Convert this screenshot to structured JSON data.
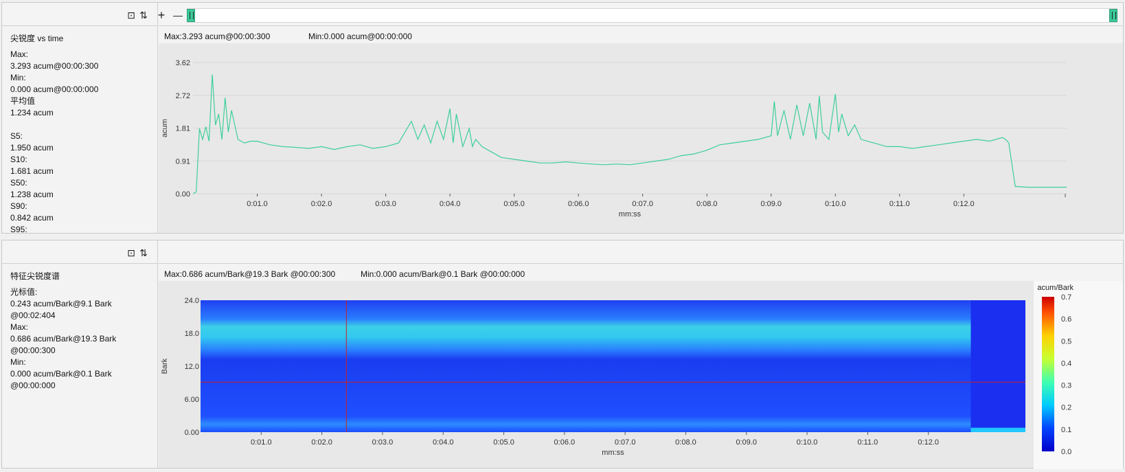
{
  "toolbar": {
    "crop_icon": "crop-icon",
    "sort_icon": "sort-icon",
    "zoom_in_label": "+",
    "zoom_out_label": "—"
  },
  "top": {
    "side_title": "尖锐度 vs time",
    "side_lines": [
      "Max:",
      "3.293 acum@00:00:300",
      "Min:",
      "0.000 acum@00:00:000",
      "平均值",
      "1.234 acum",
      "",
      "S5:",
      "1.950 acum",
      "S10:",
      "1.681 acum",
      "S50:",
      "1.238 acum",
      "S90:",
      "0.842 acum",
      "S95:"
    ],
    "max_text": "Max:3.293 acum@00:00:300",
    "min_text": "Min:0.000 acum@00:00:000"
  },
  "bottom": {
    "side_title": "特征尖锐度谱",
    "side_lines": [
      "光标值:",
      "0.243 acum/Bark@9.1 Bark",
      "@00:02:404",
      "Max:",
      "0.686 acum/Bark@19.3 Bark",
      "@00:00:300",
      "Min:",
      "0.000 acum/Bark@0.1 Bark",
      "@00:00:000"
    ],
    "max_text": "Max:0.686 acum/Bark@19.3 Bark @00:00:300",
    "min_text": "Min:0.000 acum/Bark@0.1 Bark @00:00:000"
  },
  "colors": {
    "line": "#3ccf99",
    "cursor": "#cc2222",
    "accent": "#3cc99a"
  },
  "chart_data": [
    {
      "type": "line",
      "xlabel": "mm:ss",
      "ylabel": "acum",
      "ylim": [
        0,
        3.62
      ],
      "xlim": [
        0,
        13.6
      ],
      "yticks": [
        "0.00",
        "0.91",
        "1.81",
        "2.72",
        "3.62"
      ],
      "xticks": [
        "0:01.0",
        "0:02.0",
        "0:03.0",
        "0:04.0",
        "0:05.0",
        "0:06.0",
        "0:07.0",
        "0:08.0",
        "0:09.0",
        "0:10.0",
        "0:11.0",
        "0:12.0"
      ],
      "grid": true,
      "series": [
        {
          "x": [
            0.0,
            0.05,
            0.1,
            0.15,
            0.2,
            0.25,
            0.3,
            0.35,
            0.4,
            0.45,
            0.5,
            0.55,
            0.6,
            0.7,
            0.8,
            0.9,
            1.0,
            1.2,
            1.4,
            1.6,
            1.8,
            2.0,
            2.2,
            2.4,
            2.6,
            2.8,
            3.0,
            3.2,
            3.4,
            3.5,
            3.6,
            3.7,
            3.8,
            3.9,
            4.0,
            4.05,
            4.1,
            4.2,
            4.3,
            4.35,
            4.4,
            4.5,
            4.6,
            4.8,
            5.0,
            5.2,
            5.4,
            5.6,
            5.8,
            6.0,
            6.2,
            6.4,
            6.6,
            6.8,
            7.0,
            7.2,
            7.4,
            7.6,
            7.8,
            8.0,
            8.2,
            8.4,
            8.6,
            8.8,
            9.0,
            9.05,
            9.1,
            9.2,
            9.3,
            9.4,
            9.5,
            9.6,
            9.7,
            9.75,
            9.8,
            9.9,
            10.0,
            10.05,
            10.1,
            10.2,
            10.3,
            10.4,
            10.6,
            10.8,
            11.0,
            11.2,
            11.4,
            11.6,
            11.8,
            12.0,
            12.2,
            12.4,
            12.6,
            12.65,
            12.7,
            12.8,
            13.0,
            13.2,
            13.6
          ],
          "y": [
            0.0,
            0.05,
            1.8,
            1.5,
            1.85,
            1.45,
            3.29,
            1.9,
            2.2,
            1.5,
            2.65,
            1.7,
            2.3,
            1.5,
            1.4,
            1.45,
            1.45,
            1.35,
            1.3,
            1.28,
            1.25,
            1.3,
            1.22,
            1.3,
            1.35,
            1.25,
            1.3,
            1.4,
            2.0,
            1.5,
            1.9,
            1.4,
            2.0,
            1.5,
            2.35,
            1.4,
            2.2,
            1.3,
            1.8,
            1.3,
            1.5,
            1.3,
            1.2,
            1.0,
            0.95,
            0.9,
            0.85,
            0.85,
            0.88,
            0.85,
            0.82,
            0.8,
            0.82,
            0.8,
            0.85,
            0.9,
            0.95,
            1.05,
            1.1,
            1.2,
            1.35,
            1.4,
            1.45,
            1.5,
            1.6,
            2.55,
            1.6,
            2.3,
            1.5,
            2.45,
            1.6,
            2.5,
            1.5,
            2.7,
            1.7,
            1.5,
            2.75,
            1.7,
            2.2,
            1.6,
            1.9,
            1.5,
            1.4,
            1.3,
            1.3,
            1.25,
            1.3,
            1.35,
            1.4,
            1.45,
            1.5,
            1.45,
            1.55,
            1.5,
            1.4,
            0.2,
            0.18,
            0.18,
            0.18
          ]
        }
      ],
      "max": 3.293,
      "min": 0.0
    },
    {
      "type": "heatmap",
      "xlabel": "mm:ss",
      "ylabel": "Bark",
      "ylim": [
        0,
        24
      ],
      "xlim": [
        0,
        13.6
      ],
      "yticks": [
        "0.00",
        "6.00",
        "12.0",
        "18.0",
        "24.0"
      ],
      "xticks": [
        "0:01.0",
        "0:02.0",
        "0:03.0",
        "0:04.0",
        "0:05.0",
        "0:06.0",
        "0:07.0",
        "0:08.0",
        "0:09.0",
        "0:10.0",
        "0:11.0",
        "0:12.0"
      ],
      "colorbar": {
        "label": "acum/Bark",
        "ticks": [
          "0.0",
          "0.1",
          "0.2",
          "0.3",
          "0.4",
          "0.5",
          "0.6",
          "0.7"
        ],
        "range": [
          0,
          0.7
        ]
      },
      "cursor": {
        "time": 2.404,
        "bark": 9.1,
        "value": 0.243
      },
      "max": {
        "value": 0.686,
        "bark": 19.3,
        "time": 0.3
      },
      "min": {
        "value": 0.0,
        "bark": 0.1,
        "time": 0.0
      }
    }
  ]
}
